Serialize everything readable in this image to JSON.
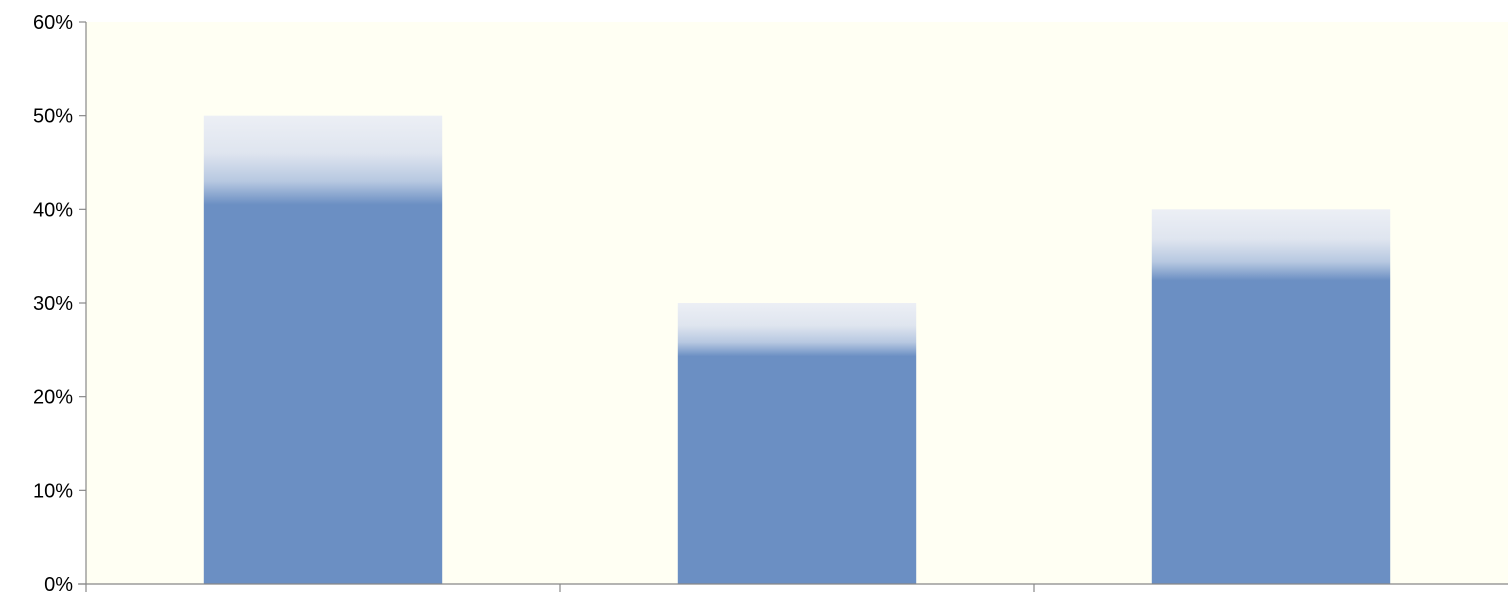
{
  "chart_data": {
    "type": "bar",
    "title": "",
    "xlabel": "",
    "ylabel": "",
    "categories": [
      "",
      "",
      ""
    ],
    "values": [
      50,
      30,
      40
    ],
    "ylim": [
      0,
      60
    ],
    "y_ticks": [
      0,
      10,
      20,
      30,
      40,
      50,
      60
    ],
    "y_tick_labels": [
      "0%",
      "10%",
      "20%",
      "30%",
      "40%",
      "50%",
      "60%"
    ],
    "grid": false,
    "legend": "none",
    "colors": {
      "bar": "#6b8fc3",
      "bar_top_highlight": "#eceff5",
      "plot_background": "#fffff3",
      "axis": "#888888"
    }
  }
}
